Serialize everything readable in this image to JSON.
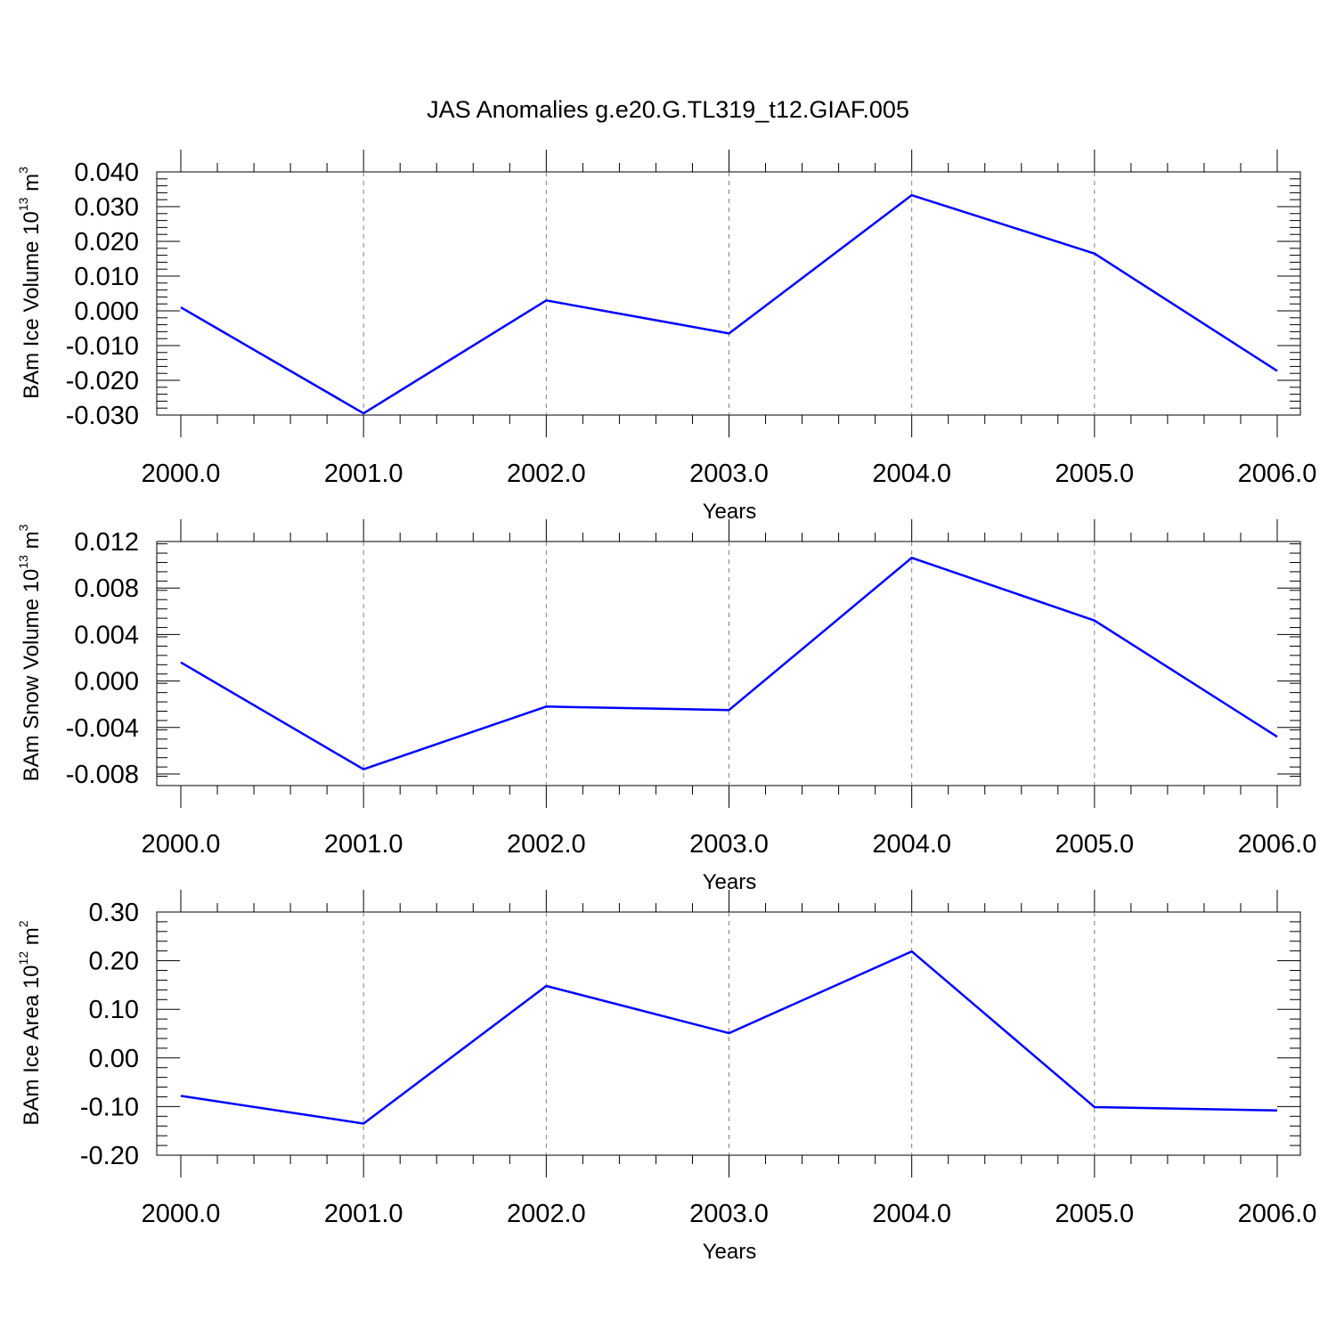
{
  "title": "JAS Anomalies g.e20.G.TL319_t12.GIAF.005",
  "colors": {
    "line": "#0000ff",
    "axis": "#000000",
    "grid": "#808080"
  },
  "chart_data": [
    {
      "type": "line",
      "xlabel": "Years",
      "ylabel": {
        "main": "BAm Ice Volume 10",
        "sup": "13",
        "unit": " m",
        "unit_sup": "3"
      },
      "xlim": [
        2000,
        2006
      ],
      "ylim": [
        -0.03,
        0.04
      ],
      "xticks": [
        2000,
        2001,
        2002,
        2003,
        2004,
        2005,
        2006
      ],
      "xtick_labels": [
        "2000.0",
        "2001.0",
        "2002.0",
        "2003.0",
        "2004.0",
        "2005.0",
        "2006.0"
      ],
      "yticks": [
        -0.03,
        -0.02,
        -0.01,
        0.0,
        0.01,
        0.02,
        0.03,
        0.04
      ],
      "ytick_labels": [
        "-0.030",
        "-0.020",
        "-0.010",
        "0.000",
        "0.010",
        "0.020",
        "0.030",
        "0.040"
      ],
      "grid": "vertical dashed at major x ticks",
      "x": [
        2000,
        2001,
        2002,
        2003,
        2004,
        2005,
        2006
      ],
      "values": [
        0.001,
        -0.0295,
        0.003,
        -0.0065,
        0.0333,
        0.0165,
        -0.0173
      ]
    },
    {
      "type": "line",
      "xlabel": "Years",
      "ylabel": {
        "main": "BAm Snow Volume 10",
        "sup": "13",
        "unit": " m",
        "unit_sup": "3"
      },
      "xlim": [
        2000,
        2006
      ],
      "ylim": [
        -0.009,
        0.012
      ],
      "xticks": [
        2000,
        2001,
        2002,
        2003,
        2004,
        2005,
        2006
      ],
      "xtick_labels": [
        "2000.0",
        "2001.0",
        "2002.0",
        "2003.0",
        "2004.0",
        "2005.0",
        "2006.0"
      ],
      "yticks": [
        -0.008,
        -0.004,
        0.0,
        0.004,
        0.008,
        0.012
      ],
      "ytick_labels": [
        "-0.008",
        "-0.004",
        "0.000",
        "0.004",
        "0.008",
        "0.012"
      ],
      "grid": "vertical dashed at major x ticks",
      "x": [
        2000,
        2001,
        2002,
        2003,
        2004,
        2005,
        2006
      ],
      "values": [
        0.0016,
        -0.0076,
        -0.0022,
        -0.0025,
        0.0106,
        0.0052,
        -0.0048
      ]
    },
    {
      "type": "line",
      "xlabel": "Years",
      "ylabel": {
        "main": "BAm Ice Area 10",
        "sup": "12",
        "unit": " m",
        "unit_sup": "2"
      },
      "xlim": [
        2000,
        2006
      ],
      "ylim": [
        -0.2,
        0.3
      ],
      "xticks": [
        2000,
        2001,
        2002,
        2003,
        2004,
        2005,
        2006
      ],
      "xtick_labels": [
        "2000.0",
        "2001.0",
        "2002.0",
        "2003.0",
        "2004.0",
        "2005.0",
        "2006.0"
      ],
      "yticks": [
        -0.2,
        -0.1,
        0.0,
        0.1,
        0.2,
        0.3
      ],
      "ytick_labels": [
        "-0.20",
        "-0.10",
        "0.00",
        "0.10",
        "0.20",
        "0.30"
      ],
      "grid": "vertical dashed at major x ticks",
      "x": [
        2000,
        2001,
        2002,
        2003,
        2004,
        2005,
        2006
      ],
      "values": [
        -0.078,
        -0.135,
        0.148,
        0.051,
        0.219,
        -0.101,
        -0.108
      ]
    }
  ]
}
